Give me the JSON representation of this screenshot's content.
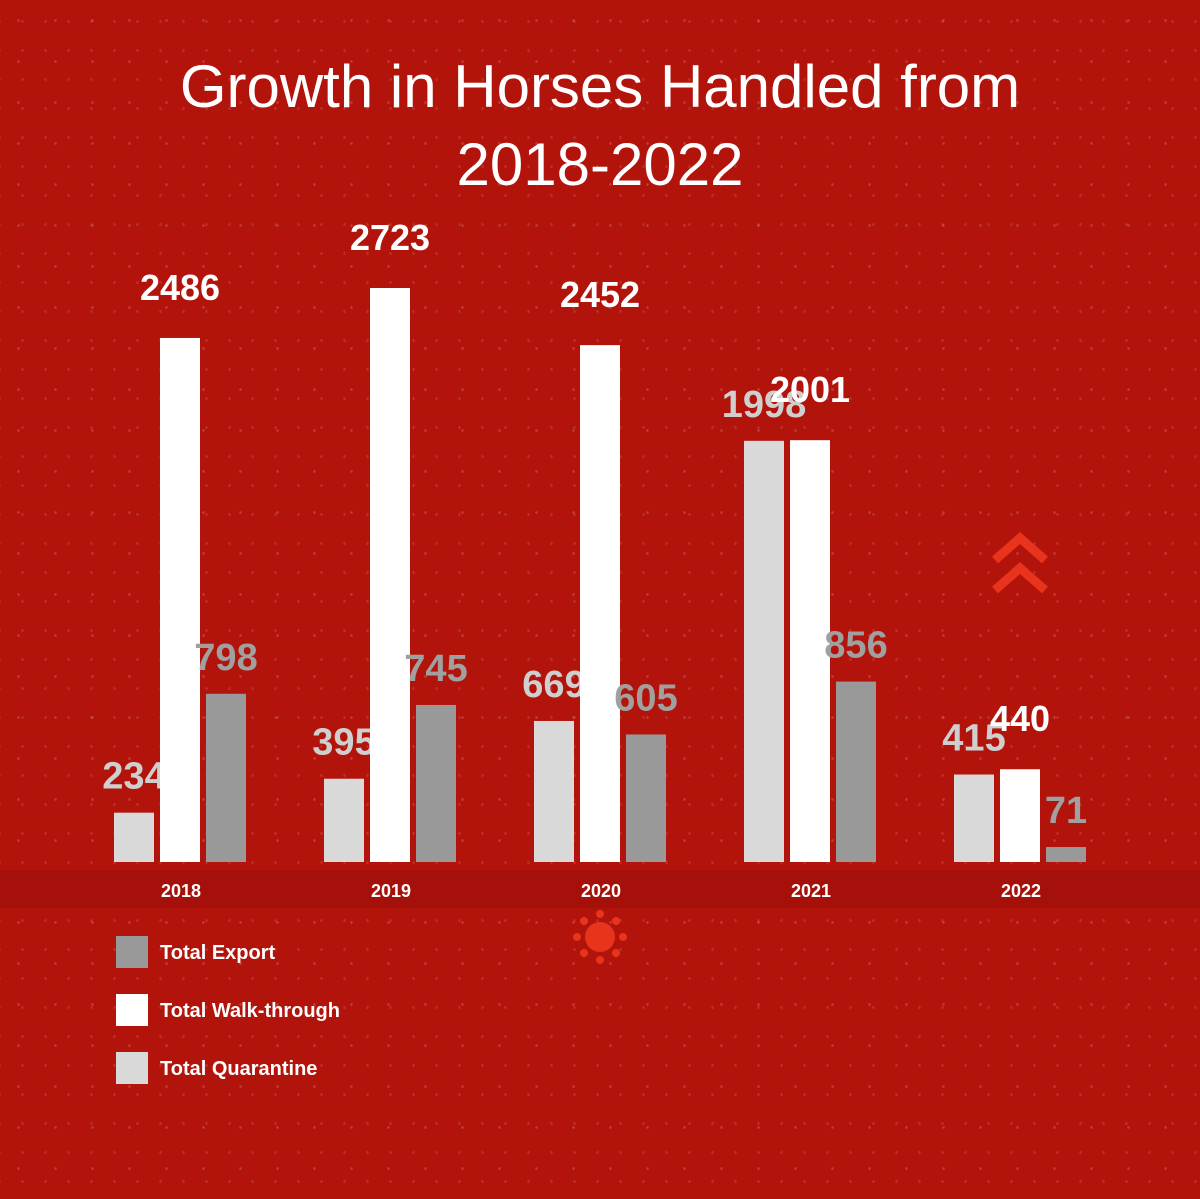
{
  "chart_data": {
    "type": "bar",
    "title": "Growth in Horses Handled from 2018-2022",
    "categories": [
      "2018",
      "2019",
      "2020",
      "2021",
      "2022"
    ],
    "series": [
      {
        "name": "Total Quarantine",
        "color": "#d9d9d9",
        "values": [
          234,
          395,
          669,
          1998,
          415
        ]
      },
      {
        "name": "Total Walk-through",
        "color": "#ffffff",
        "values": [
          2486,
          2723,
          2452,
          2001,
          440
        ]
      },
      {
        "name": "Total Export",
        "color": "#999999",
        "values": [
          798,
          745,
          605,
          856,
          71
        ]
      }
    ]
  }
}
